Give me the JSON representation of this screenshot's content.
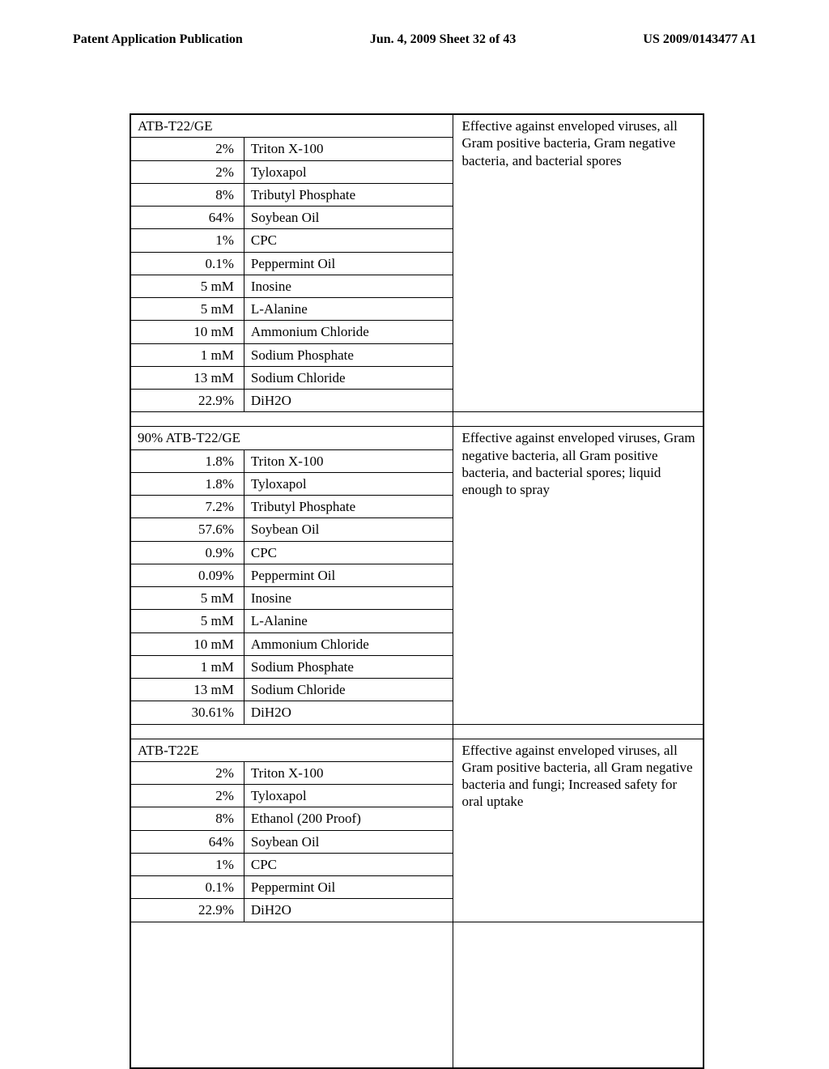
{
  "header": {
    "left": "Patent Application Publication",
    "center": "Jun. 4, 2009  Sheet 32 of 43",
    "right": "US 2009/0143477 A1"
  },
  "sections": [
    {
      "title": "ATB-T22/GE",
      "effect": "Effective against enveloped viruses, all Gram positive bacteria, Gram negative bacteria, and bacterial spores",
      "rows": [
        {
          "amount": "2%",
          "ingredient": "Triton X-100"
        },
        {
          "amount": "2%",
          "ingredient": "Tyloxapol"
        },
        {
          "amount": "8%",
          "ingredient": "Tributyl Phosphate"
        },
        {
          "amount": "64%",
          "ingredient": "Soybean Oil"
        },
        {
          "amount": "1%",
          "ingredient": "CPC"
        },
        {
          "amount": "0.1%",
          "ingredient": "Peppermint Oil"
        },
        {
          "amount": "5 mM",
          "ingredient": "Inosine"
        },
        {
          "amount": "5 mM",
          "ingredient": "L-Alanine"
        },
        {
          "amount": "10 mM",
          "ingredient": "Ammonium Chloride"
        },
        {
          "amount": "1 mM",
          "ingredient": "Sodium Phosphate"
        },
        {
          "amount": "13 mM",
          "ingredient": "Sodium Chloride"
        },
        {
          "amount": "22.9%",
          "ingredient": "DiH2O"
        }
      ]
    },
    {
      "title": "90% ATB-T22/GE",
      "effect": "Effective against enveloped viruses, Gram negative bacteria, all Gram positive bacteria, and bacterial spores; liquid enough to spray",
      "rows": [
        {
          "amount": "1.8%",
          "ingredient": "Triton X-100"
        },
        {
          "amount": "1.8%",
          "ingredient": "Tyloxapol"
        },
        {
          "amount": "7.2%",
          "ingredient": "Tributyl Phosphate"
        },
        {
          "amount": "57.6%",
          "ingredient": "Soybean Oil"
        },
        {
          "amount": "0.9%",
          "ingredient": "CPC"
        },
        {
          "amount": "0.09%",
          "ingredient": "Peppermint Oil"
        },
        {
          "amount": "5 mM",
          "ingredient": "Inosine"
        },
        {
          "amount": "5 mM",
          "ingredient": "L-Alanine"
        },
        {
          "amount": "10 mM",
          "ingredient": "Ammonium Chloride"
        },
        {
          "amount": "1 mM",
          "ingredient": "Sodium Phosphate"
        },
        {
          "amount": "13 mM",
          "ingredient": "Sodium Chloride"
        },
        {
          "amount": "30.61%",
          "ingredient": "DiH2O"
        }
      ]
    },
    {
      "title": "ATB-T22E",
      "effect": "Effective against enveloped viruses, all Gram positive bacteria, all Gram negative bacteria and fungi; Increased safety for oral uptake",
      "rows": [
        {
          "amount": "2%",
          "ingredient": "Triton X-100"
        },
        {
          "amount": "2%",
          "ingredient": "Tyloxapol"
        },
        {
          "amount": "8%",
          "ingredient": "Ethanol (200 Proof)"
        },
        {
          "amount": "64%",
          "ingredient": "Soybean Oil"
        },
        {
          "amount": "1%",
          "ingredient": "CPC"
        },
        {
          "amount": "0.1%",
          "ingredient": "Peppermint Oil"
        },
        {
          "amount": "22.9%",
          "ingredient": "DiH2O"
        }
      ]
    }
  ]
}
